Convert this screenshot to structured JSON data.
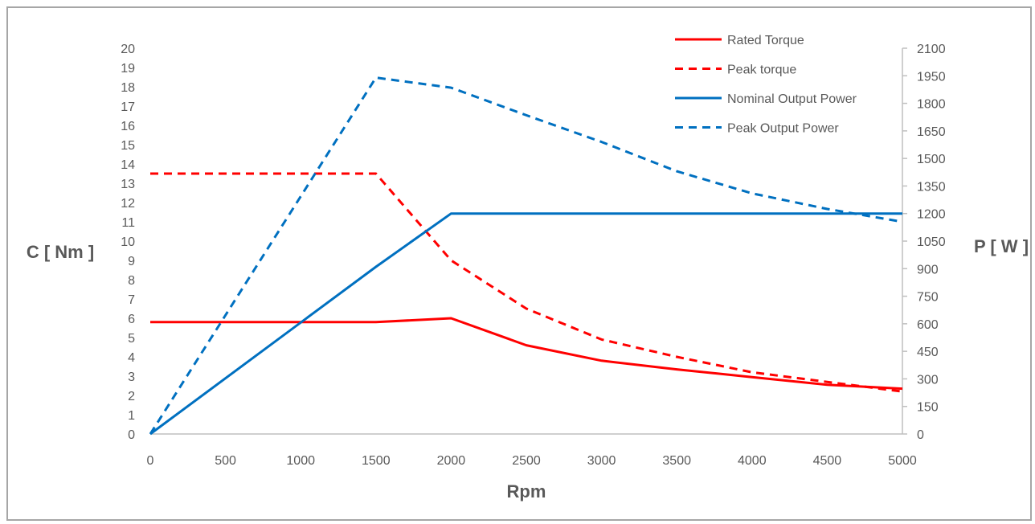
{
  "chart_data": {
    "type": "line",
    "xlabel": "Rpm",
    "ylabel_left": "C [ Nm ]",
    "ylabel_right": "P [ W ]",
    "xlim": [
      0,
      5000
    ],
    "ylim_left": [
      0,
      20
    ],
    "ylim_right": [
      0,
      2100
    ],
    "x_ticks": [
      0,
      500,
      1000,
      1500,
      2000,
      2500,
      3000,
      3500,
      4000,
      4500,
      5000
    ],
    "y_left_ticks": [
      0,
      1,
      2,
      3,
      4,
      5,
      6,
      7,
      8,
      9,
      10,
      11,
      12,
      13,
      14,
      15,
      16,
      17,
      18,
      19,
      20
    ],
    "y_right_ticks": [
      0,
      150,
      300,
      450,
      600,
      750,
      900,
      1050,
      1200,
      1350,
      1500,
      1650,
      1800,
      1950,
      2100
    ],
    "grid": false,
    "legend_position": "top-right",
    "series": [
      {
        "name": "Rated Torque",
        "axis": "left",
        "color": "#ff0000",
        "dashed": false,
        "x": [
          0,
          1500,
          2000,
          2500,
          3000,
          3500,
          4000,
          4500,
          5000
        ],
        "y": [
          5.8,
          5.8,
          6.0,
          4.6,
          3.8,
          3.35,
          2.95,
          2.55,
          2.35
        ]
      },
      {
        "name": "Peak torque",
        "axis": "left",
        "color": "#ff0000",
        "dashed": true,
        "x": [
          0,
          1500,
          2000,
          2500,
          3000,
          3500,
          4000,
          4500,
          5000
        ],
        "y": [
          13.5,
          13.5,
          9.0,
          6.5,
          4.9,
          4.0,
          3.2,
          2.7,
          2.2
        ]
      },
      {
        "name": "Nominal Output Power",
        "axis": "right",
        "color": "#0070c0",
        "dashed": false,
        "x": [
          0,
          1500,
          2000,
          2500,
          3000,
          3500,
          4000,
          4500,
          5000
        ],
        "y": [
          0,
          910,
          1200,
          1200,
          1200,
          1200,
          1200,
          1200,
          1200
        ]
      },
      {
        "name": "Peak Output Power",
        "axis": "right",
        "color": "#0070c0",
        "dashed": true,
        "x": [
          0,
          1500,
          2000,
          2500,
          3000,
          3500,
          4000,
          4500,
          5000
        ],
        "y": [
          0,
          1940,
          1885,
          1735,
          1590,
          1430,
          1310,
          1225,
          1155
        ]
      }
    ]
  }
}
